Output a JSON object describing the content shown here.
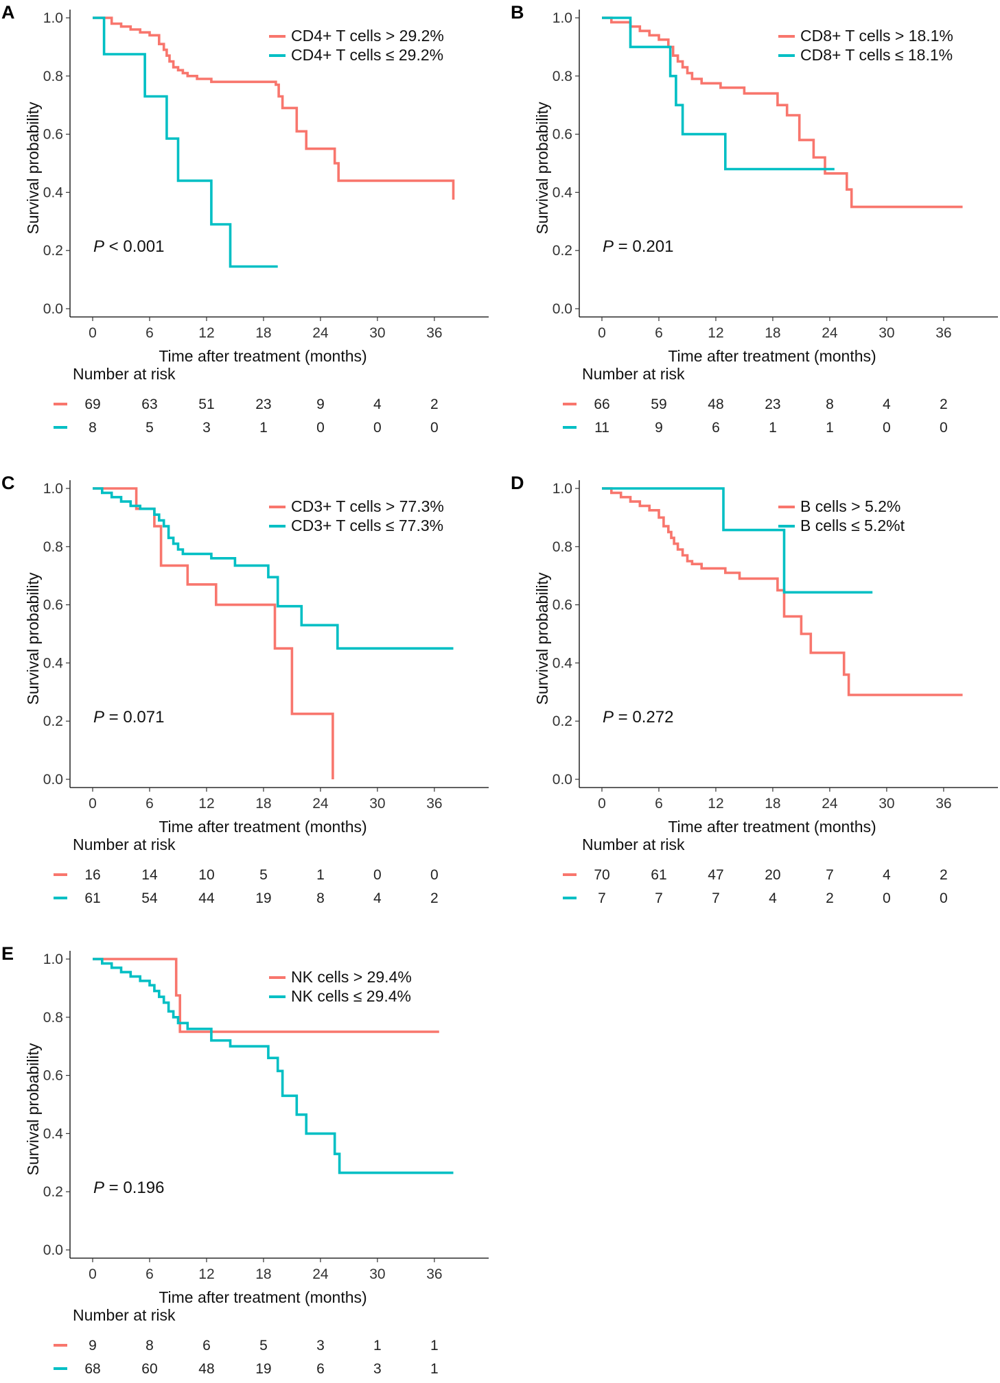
{
  "chart_data": [
    {
      "type": "line",
      "panel": "A",
      "xlabel": "Time after treatment (months)",
      "ylabel": "Survival probability",
      "xlim": [
        0,
        40
      ],
      "ylim": [
        0,
        1
      ],
      "xticks": [
        0,
        6,
        12,
        18,
        24,
        30,
        36
      ],
      "yticks": [
        "0.0",
        "0.2",
        "0.4",
        "0.6",
        "0.8",
        "1.0"
      ],
      "p_label": "P",
      "p_value": " < 0.001",
      "risk_title": "Number at risk",
      "series": [
        {
          "name": "CD4+ T cells > 29.2%",
          "color": "#F8766D",
          "x": [
            0,
            2,
            3,
            4,
            5,
            6,
            7,
            7.5,
            7.8,
            8.1,
            8.5,
            9.0,
            9.5,
            10.0,
            11.0,
            12.5,
            19.3,
            19.6,
            20.0,
            21.5,
            22.5,
            25.5,
            25.9,
            38
          ],
          "y": [
            1.0,
            0.98,
            0.97,
            0.96,
            0.95,
            0.94,
            0.91,
            0.89,
            0.87,
            0.85,
            0.83,
            0.82,
            0.81,
            0.8,
            0.79,
            0.78,
            0.77,
            0.73,
            0.69,
            0.61,
            0.55,
            0.5,
            0.44,
            0.375
          ],
          "risk": [
            69,
            63,
            51,
            23,
            9,
            4,
            2
          ]
        },
        {
          "name": "CD4+ T cells ≤ 29.2%",
          "color": "#00BFC4",
          "x": [
            0,
            1.2,
            5.5,
            7.8,
            9.0,
            12.5,
            14.5,
            19.5
          ],
          "y": [
            1.0,
            0.875,
            0.73,
            0.585,
            0.44,
            0.29,
            0.145,
            0.145
          ],
          "risk": [
            8,
            5,
            3,
            1,
            0,
            0,
            0
          ]
        }
      ]
    },
    {
      "type": "line",
      "panel": "B",
      "xlabel": "Time after treatment (months)",
      "ylabel": "Survival probability",
      "xlim": [
        0,
        40
      ],
      "ylim": [
        0,
        1
      ],
      "xticks": [
        0,
        6,
        12,
        18,
        24,
        30,
        36
      ],
      "yticks": [
        "0.0",
        "0.2",
        "0.4",
        "0.6",
        "0.8",
        "1.0"
      ],
      "p_label": "P",
      "p_value": " = 0.201",
      "risk_title": "Number at risk",
      "series": [
        {
          "name": "CD8+ T cells > 18.1%",
          "color": "#F8766D",
          "x": [
            0,
            1,
            3,
            4,
            5,
            6,
            7,
            7.5,
            8,
            8.5,
            9.0,
            9.5,
            10.5,
            12.5,
            15.0,
            18.5,
            19.5,
            20.8,
            22.3,
            23.5,
            25.8,
            26.3,
            38
          ],
          "y": [
            1.0,
            0.985,
            0.97,
            0.955,
            0.94,
            0.925,
            0.9,
            0.87,
            0.85,
            0.83,
            0.81,
            0.79,
            0.775,
            0.76,
            0.74,
            0.7,
            0.665,
            0.58,
            0.52,
            0.465,
            0.41,
            0.35,
            0.35
          ],
          "risk": [
            66,
            59,
            48,
            23,
            8,
            4,
            2
          ]
        },
        {
          "name": "CD8+ T cells ≤ 18.1%",
          "color": "#00BFC4",
          "x": [
            0,
            3,
            7.2,
            7.8,
            8.5,
            13.0,
            24.5
          ],
          "y": [
            1.0,
            0.9,
            0.8,
            0.7,
            0.6,
            0.48,
            0.48
          ],
          "risk": [
            11,
            9,
            6,
            1,
            1,
            0,
            0
          ]
        }
      ]
    },
    {
      "type": "line",
      "panel": "C",
      "xlabel": "Time after treatment (months)",
      "ylabel": "Survival probability",
      "xlim": [
        0,
        40
      ],
      "ylim": [
        0,
        1
      ],
      "xticks": [
        0,
        6,
        12,
        18,
        24,
        30,
        36
      ],
      "yticks": [
        "0.0",
        "0.2",
        "0.4",
        "0.6",
        "0.8",
        "1.0"
      ],
      "p_label": "P",
      "p_value": " = 0.071",
      "risk_title": "Number at risk",
      "series": [
        {
          "name": "CD3+ T cells > 77.3%",
          "color": "#F8766D",
          "x": [
            0,
            4.6,
            6.5,
            7.2,
            10.0,
            13.0,
            19.2,
            21.0,
            25.3
          ],
          "y": [
            1.0,
            0.93,
            0.87,
            0.735,
            0.67,
            0.6,
            0.45,
            0.225,
            0.0
          ],
          "risk": [
            16,
            14,
            10,
            5,
            1,
            0,
            0
          ]
        },
        {
          "name": "CD3+ T cells ≤ 77.3%",
          "color": "#00BFC4",
          "x": [
            0,
            1,
            2,
            3,
            4,
            5,
            6.5,
            7.0,
            7.5,
            8.0,
            8.5,
            9.0,
            9.5,
            12.5,
            15.0,
            18.5,
            19.5,
            22.0,
            25.8,
            38
          ],
          "y": [
            1.0,
            0.985,
            0.97,
            0.955,
            0.94,
            0.93,
            0.91,
            0.89,
            0.87,
            0.83,
            0.81,
            0.79,
            0.775,
            0.76,
            0.735,
            0.695,
            0.595,
            0.53,
            0.45,
            0.45
          ],
          "risk": [
            61,
            54,
            44,
            19,
            8,
            4,
            2
          ]
        }
      ]
    },
    {
      "type": "line",
      "panel": "D",
      "xlabel": "Time after treatment (months)",
      "ylabel": "Survival probability",
      "xlim": [
        0,
        40
      ],
      "ylim": [
        0,
        1
      ],
      "xticks": [
        0,
        6,
        12,
        18,
        24,
        30,
        36
      ],
      "yticks": [
        "0.0",
        "0.2",
        "0.4",
        "0.6",
        "0.8",
        "1.0"
      ],
      "p_label": "P",
      "p_value": " = 0.272",
      "risk_title": "Number at risk",
      "series": [
        {
          "name": "B cells > 5.2%",
          "color": "#F8766D",
          "x": [
            0,
            1,
            2,
            3,
            4,
            5,
            6,
            6.5,
            7,
            7.3,
            7.6,
            8.0,
            8.5,
            9.0,
            9.5,
            10.5,
            13.0,
            14.5,
            18.5,
            19.2,
            21.0,
            22.0,
            25.5,
            26.0,
            38
          ],
          "y": [
            1.0,
            0.985,
            0.97,
            0.955,
            0.94,
            0.925,
            0.9,
            0.87,
            0.85,
            0.83,
            0.81,
            0.79,
            0.77,
            0.75,
            0.74,
            0.725,
            0.71,
            0.69,
            0.65,
            0.56,
            0.5,
            0.435,
            0.36,
            0.29,
            0.29
          ],
          "risk": [
            70,
            61,
            47,
            20,
            7,
            4,
            2
          ]
        },
        {
          "name": "B cells ≤ 5.2%t",
          "color": "#00BFC4",
          "x": [
            0,
            12.8,
            19.2,
            28.5
          ],
          "y": [
            1.0,
            0.857,
            0.643,
            0.643
          ],
          "risk": [
            7,
            7,
            7,
            4,
            2,
            0,
            0
          ]
        }
      ]
    },
    {
      "type": "line",
      "panel": "E",
      "xlabel": "Time after treatment (months)",
      "ylabel": "Survival probability",
      "xlim": [
        0,
        40
      ],
      "ylim": [
        0,
        1
      ],
      "xticks": [
        0,
        6,
        12,
        18,
        24,
        30,
        36
      ],
      "yticks": [
        "0.0",
        "0.2",
        "0.4",
        "0.6",
        "0.8",
        "1.0"
      ],
      "p_label": "P",
      "p_value": " = 0.196",
      "risk_title": "Number at risk",
      "series": [
        {
          "name": "NK cells > 29.4%",
          "color": "#F8766D",
          "x": [
            0,
            8.8,
            9.2,
            36.5
          ],
          "y": [
            1.0,
            0.875,
            0.75,
            0.75
          ],
          "risk": [
            9,
            8,
            6,
            5,
            3,
            1,
            1
          ]
        },
        {
          "name": "NK cells ≤ 29.4%",
          "color": "#00BFC4",
          "x": [
            0,
            1,
            2,
            3,
            4,
            5,
            6,
            6.5,
            7.0,
            7.5,
            8.0,
            8.5,
            9.0,
            10.0,
            12.5,
            14.5,
            18.5,
            19.5,
            20.0,
            21.5,
            22.5,
            25.5,
            26.0,
            38
          ],
          "y": [
            1.0,
            0.985,
            0.97,
            0.955,
            0.94,
            0.925,
            0.91,
            0.89,
            0.87,
            0.85,
            0.82,
            0.8,
            0.78,
            0.76,
            0.72,
            0.7,
            0.66,
            0.615,
            0.53,
            0.465,
            0.4,
            0.33,
            0.265,
            0.265
          ],
          "risk": [
            68,
            60,
            48,
            19,
            6,
            3,
            1
          ]
        }
      ]
    }
  ]
}
